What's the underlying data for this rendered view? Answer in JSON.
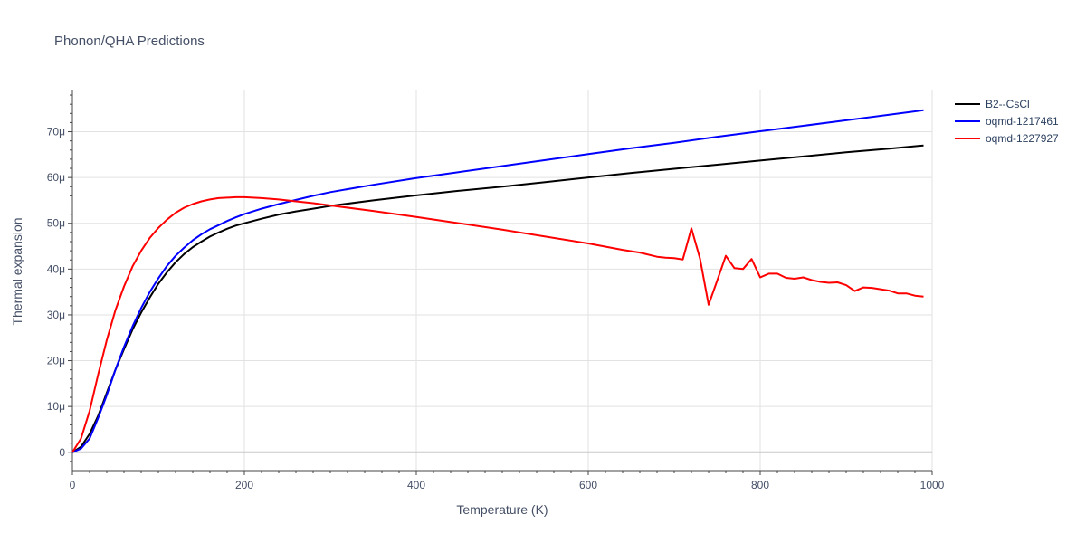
{
  "chart_data": {
    "type": "line",
    "title": "Phonon/QHA Predictions",
    "xlabel": "Temperature (K)",
    "ylabel": "Thermal expansion",
    "xlim": [
      0,
      1000
    ],
    "ylim": [
      -4,
      79
    ],
    "x_ticks": [
      0,
      200,
      400,
      600,
      800,
      1000
    ],
    "x_tick_labels": [
      "0",
      "200",
      "400",
      "600",
      "800",
      "1000"
    ],
    "y_ticks": [
      0,
      10,
      20,
      30,
      40,
      50,
      60,
      70
    ],
    "y_tick_labels": [
      "0",
      "10μ",
      "20μ",
      "30μ",
      "40μ",
      "50μ",
      "60μ",
      "70μ"
    ],
    "grid": true,
    "legend_position": "top-right",
    "series": [
      {
        "name": "B2--CsCl",
        "color": "#000000",
        "x": [
          0,
          10,
          20,
          30,
          40,
          50,
          60,
          70,
          80,
          90,
          100,
          110,
          120,
          130,
          140,
          150,
          160,
          170,
          180,
          190,
          200,
          220,
          240,
          260,
          280,
          300,
          350,
          400,
          450,
          500,
          550,
          600,
          650,
          700,
          750,
          800,
          850,
          900,
          950,
          990
        ],
        "y": [
          0,
          1.2,
          4,
          8,
          13,
          18,
          22.5,
          26.8,
          30.5,
          33.8,
          36.8,
          39.3,
          41.5,
          43.3,
          44.8,
          46,
          47.1,
          48,
          48.8,
          49.5,
          50,
          51,
          51.9,
          52.6,
          53.2,
          53.8,
          55,
          56.1,
          57.1,
          58,
          59,
          60,
          61,
          61.9,
          62.8,
          63.7,
          64.6,
          65.5,
          66.3,
          67
        ]
      },
      {
        "name": "oqmd-1217461",
        "color": "#0000ff",
        "x": [
          0,
          10,
          20,
          30,
          40,
          50,
          60,
          70,
          80,
          90,
          100,
          110,
          120,
          130,
          140,
          150,
          160,
          170,
          180,
          190,
          200,
          220,
          240,
          260,
          280,
          300,
          350,
          400,
          450,
          500,
          550,
          600,
          650,
          700,
          750,
          800,
          850,
          900,
          950,
          990
        ],
        "y": [
          0,
          0.8,
          3,
          7.5,
          12.5,
          18,
          23,
          27.5,
          31.5,
          35,
          38,
          40.7,
          42.9,
          44.7,
          46.3,
          47.6,
          48.7,
          49.6,
          50.5,
          51.3,
          52,
          53.2,
          54.2,
          55.1,
          56,
          56.8,
          58.4,
          59.9,
          61.2,
          62.5,
          63.8,
          65.1,
          66.4,
          67.6,
          68.9,
          70.1,
          71.3,
          72.5,
          73.7,
          74.7
        ]
      },
      {
        "name": "oqmd-1227927",
        "color": "#ff0000",
        "x": [
          0,
          10,
          20,
          30,
          40,
          50,
          60,
          70,
          80,
          90,
          100,
          110,
          120,
          130,
          140,
          150,
          160,
          170,
          180,
          190,
          200,
          210,
          220,
          240,
          260,
          280,
          300,
          350,
          400,
          450,
          500,
          550,
          600,
          640,
          660,
          680,
          690,
          700,
          710,
          720,
          730,
          740,
          750,
          760,
          770,
          780,
          790,
          800,
          810,
          820,
          830,
          840,
          850,
          860,
          870,
          880,
          890,
          900,
          910,
          920,
          930,
          940,
          950,
          960,
          970,
          980,
          990
        ],
        "y": [
          0,
          3,
          9,
          17,
          24.5,
          31,
          36.2,
          40.6,
          44,
          46.8,
          49,
          50.8,
          52.3,
          53.4,
          54.2,
          54.8,
          55.2,
          55.5,
          55.6,
          55.7,
          55.7,
          55.6,
          55.5,
          55.2,
          54.8,
          54.4,
          53.9,
          52.7,
          51.4,
          50,
          48.6,
          47.1,
          45.6,
          44.2,
          43.6,
          42.7,
          42.5,
          42.4,
          42.1,
          48.9,
          42.3,
          32.2,
          37.5,
          42.9,
          40.2,
          40,
          42.2,
          38.2,
          39,
          39,
          38.1,
          37.9,
          38.2,
          37.6,
          37.2,
          37,
          37.1,
          36.5,
          35.2,
          36,
          35.9,
          35.6,
          35.3,
          34.7,
          34.7,
          34.2,
          34
        ]
      }
    ]
  }
}
